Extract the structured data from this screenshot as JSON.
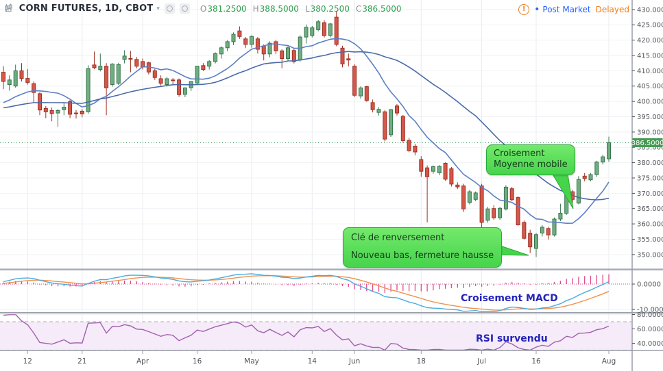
{
  "header": {
    "symbol_title": "CORN FUTURES, 1D, CBOT",
    "ohlc": {
      "o_label": "O",
      "o_value": "381.2500",
      "h_label": "H",
      "h_value": "388.5000",
      "l_label": "L",
      "l_value": "380.2500",
      "c_label": "C",
      "c_value": "386.5000"
    },
    "post_market_label": "Post Market",
    "delayed_label": "Delayed"
  },
  "icons": {
    "add_glyph": "⊞",
    "caret_glyph": "▾",
    "warning_glyph": "!",
    "post_market_dot": "•"
  },
  "annotations": {
    "ma_cross": {
      "line1": "Croisement",
      "line2": "Moyenne mobile"
    },
    "key_reversal": {
      "line1": "Clé de renversement",
      "line2": "Nouveau bas, fermeture hausse"
    },
    "macd_label": "Croisement MACD",
    "rsi_label": "RSI survendu"
  },
  "colors": {
    "up_text": "#2e9d4e",
    "orange": "#ef7f1a",
    "blue": "#2962ff",
    "navy": "#2424b8",
    "bub1": "#74e96c",
    "bub2": "#46d44b",
    "bub_border": "#2da83a",
    "up_fill": "#6fae80",
    "up_stroke": "#38754d",
    "down_fill": "#d4584a",
    "down_stroke": "#9f2f23",
    "ma_fast": "#5d7fc4",
    "ma_slow": "#4a6aa8",
    "macd_line": "#4aabe0",
    "signal_line": "#f19149",
    "histogram": "#e0498a",
    "rsi_line": "#a160ae",
    "rsi_band": "#f6ebf9",
    "rsi_band_border": "#adadad",
    "last_price_line": "#3f9e68",
    "badge_bg": "#459a52",
    "badge_text": "#ffffff",
    "grid_h": "#f0f2f5",
    "grid_v": "#e9ebee",
    "separator": "#9a9ea8",
    "axis_text": "#4f5258"
  },
  "chart_data": {
    "type": "candlestick",
    "title": "CORN FUTURES, 1D, CBOT",
    "interval": "1D",
    "exchange": "CBOT",
    "last_bar": {
      "open": 381.25,
      "high": 388.5,
      "low": 380.25,
      "close": 386.5
    },
    "price_axis": {
      "ticks": [
        430,
        425,
        420,
        415,
        410,
        405,
        400,
        395,
        390,
        385,
        380,
        375,
        370,
        365,
        360,
        355,
        350
      ],
      "decimals": 4,
      "range": [
        345.2,
        433.1
      ],
      "last_price": 386.5,
      "last_price_label": "386.5000"
    },
    "time_axis": {
      "ticks": [
        {
          "label": "12",
          "bar": 4
        },
        {
          "label": "21",
          "bar": 13
        },
        {
          "label": "Apr",
          "bar": 23
        },
        {
          "label": "16",
          "bar": 32
        },
        {
          "label": "May",
          "bar": 41
        },
        {
          "label": "14",
          "bar": 51
        },
        {
          "label": "Jun",
          "bar": 58
        },
        {
          "label": "18",
          "bar": 69
        },
        {
          "label": "Jul",
          "bar": 79
        },
        {
          "label": "16",
          "bar": 88
        },
        {
          "label": "Aug",
          "bar": 100
        }
      ]
    },
    "series": {
      "warmup_closes": [
        399,
        398,
        397.5,
        396.5,
        396,
        395.5,
        396,
        396.5,
        397,
        397.5,
        398,
        398.5,
        398,
        397.5,
        397,
        396.5,
        396,
        396.5,
        397,
        397.5,
        398,
        398.5,
        399,
        399.5,
        399,
        398.5,
        398,
        398.5,
        399,
        399.5
      ],
      "candles": [
        [
          409.5,
          411.5,
          404,
          406.5
        ],
        [
          405.5,
          408.5,
          403.5,
          407
        ],
        [
          405,
          412,
          404.5,
          410
        ],
        [
          410,
          412.5,
          406.5,
          407.5
        ],
        [
          407.5,
          410.5,
          405.5,
          406.2
        ],
        [
          405.8,
          406.5,
          399.5,
          402.9
        ],
        [
          402.5,
          403,
          395.5,
          397.2
        ],
        [
          397.7,
          398.5,
          394.5,
          396.6
        ],
        [
          397,
          398,
          393.5,
          396
        ],
        [
          396.2,
          397.5,
          391.7,
          397
        ],
        [
          397.3,
          399.5,
          395.5,
          398.1
        ],
        [
          399.9,
          400.5,
          394.5,
          395.8
        ],
        [
          396.2,
          397.2,
          394.4,
          396
        ],
        [
          396.8,
          397.5,
          394.8,
          395.9
        ],
        [
          396.6,
          411.8,
          396,
          410.7
        ],
        [
          411.9,
          416.3,
          410.5,
          411
        ],
        [
          410.4,
          415.6,
          409.8,
          411.5
        ],
        [
          411.5,
          412.5,
          395.5,
          404.4
        ],
        [
          405.5,
          412.5,
          404.8,
          412.2
        ],
        [
          405.9,
          412.6,
          405.4,
          412
        ],
        [
          413.7,
          416.7,
          412.4,
          414.8
        ],
        [
          414,
          416.5,
          409.5,
          413.9
        ],
        [
          413.7,
          414.5,
          410.8,
          411.5
        ],
        [
          413,
          414,
          410.4,
          411.2
        ],
        [
          412.6,
          413,
          408.8,
          409.6
        ],
        [
          410,
          410.6,
          407,
          407.8
        ],
        [
          407.4,
          408.5,
          405.2,
          405.9
        ],
        [
          405.5,
          408,
          404.8,
          407.4
        ],
        [
          407,
          407.6,
          405.4,
          406.8
        ],
        [
          407,
          407.5,
          401.5,
          402.2
        ],
        [
          402.3,
          404.6,
          401.4,
          404.4
        ],
        [
          404.4,
          406.6,
          403.4,
          406.5
        ],
        [
          406,
          411.6,
          405.5,
          411.5
        ],
        [
          411.7,
          412.5,
          409.9,
          410.4
        ],
        [
          411.5,
          413.5,
          410.4,
          413
        ],
        [
          413,
          416,
          412.4,
          415.6
        ],
        [
          415.5,
          418,
          414,
          417.5
        ],
        [
          417.5,
          420,
          416.4,
          419.5
        ],
        [
          419.5,
          422.5,
          418.4,
          421.9
        ],
        [
          423,
          424.5,
          420.4,
          421.2
        ],
        [
          420.4,
          421,
          417.4,
          418.6
        ],
        [
          418.6,
          421.6,
          417.5,
          421.2
        ],
        [
          420.4,
          421,
          415.6,
          417
        ],
        [
          418.1,
          418.6,
          413.4,
          415.5
        ],
        [
          415.5,
          419.6,
          414.4,
          419
        ],
        [
          419.5,
          420.1,
          415.4,
          416.5
        ],
        [
          416.5,
          417,
          410.8,
          414
        ],
        [
          414,
          418.1,
          413.4,
          417.5
        ],
        [
          416.6,
          417.5,
          412.4,
          413
        ],
        [
          413.5,
          421.6,
          412.9,
          421
        ],
        [
          421,
          425.1,
          418.9,
          424.2
        ],
        [
          421.5,
          424.6,
          420.9,
          424
        ],
        [
          423.4,
          426.6,
          422.9,
          426
        ],
        [
          425.7,
          426.5,
          420.9,
          421.5
        ],
        [
          421.5,
          425.6,
          420.9,
          425.3
        ],
        [
          427.5,
          429.5,
          418,
          418.6
        ],
        [
          417.4,
          418.2,
          411.1,
          412.2
        ],
        [
          413.9,
          415.6,
          411.4,
          413.5
        ],
        [
          411.5,
          412.1,
          401.4,
          402
        ],
        [
          401.8,
          404.9,
          400.9,
          404.4
        ],
        [
          404.8,
          405.1,
          399.9,
          400.3
        ],
        [
          399.6,
          400.6,
          396.4,
          397.3
        ],
        [
          396.4,
          398.1,
          395.4,
          397.4
        ],
        [
          396.6,
          397.1,
          386.9,
          387.7
        ],
        [
          389.1,
          397.6,
          388.4,
          397.3
        ],
        [
          398.5,
          399.1,
          395.4,
          396.2
        ],
        [
          395.1,
          395.6,
          386.5,
          387.2
        ],
        [
          387.3,
          388.1,
          383.4,
          383.9
        ],
        [
          385.4,
          386.1,
          382.4,
          383.5
        ],
        [
          381,
          382.1,
          375.4,
          377.2
        ],
        [
          378.3,
          379.1,
          360.5,
          375.4
        ],
        [
          377.2,
          379.1,
          376.4,
          378.7
        ],
        [
          376.7,
          379.2,
          375.9,
          378.8
        ],
        [
          379.8,
          380.1,
          374.1,
          374.6
        ],
        [
          378,
          378.6,
          372.2,
          373
        ],
        [
          372.7,
          373.6,
          371.4,
          372.1
        ],
        [
          372.4,
          373.1,
          363.9,
          364.9
        ],
        [
          367,
          371.1,
          366.4,
          370.5
        ],
        [
          368,
          370.6,
          367.4,
          370.1
        ],
        [
          372.4,
          373.1,
          357.5,
          360.5
        ],
        [
          361.2,
          365.6,
          360.4,
          364.9
        ],
        [
          365,
          366.1,
          361.4,
          362
        ],
        [
          362,
          365.6,
          361.4,
          365.1
        ],
        [
          364.9,
          372.6,
          364.4,
          372
        ],
        [
          371.5,
          372.1,
          367.4,
          367.9
        ],
        [
          368.6,
          369.1,
          359.4,
          359.7
        ],
        [
          360.5,
          361.1,
          354.9,
          355.3
        ],
        [
          357,
          358.1,
          350.5,
          352.5
        ],
        [
          352,
          357.1,
          349.25,
          356.5
        ],
        [
          357,
          359.6,
          355.9,
          358.9
        ],
        [
          358.5,
          359.1,
          354.9,
          356.4
        ],
        [
          356.4,
          362.1,
          355.9,
          361.6
        ],
        [
          361.6,
          366.6,
          360.9,
          363.5
        ],
        [
          363.5,
          370.1,
          362.9,
          369.8
        ],
        [
          370.5,
          371.1,
          366.9,
          368
        ],
        [
          366.8,
          375.6,
          366.4,
          374.5
        ],
        [
          375.6,
          376.6,
          373.9,
          374.8
        ],
        [
          374.4,
          376.6,
          373.9,
          376.1
        ],
        [
          376.1,
          380.6,
          375.4,
          380.2
        ],
        [
          380.2,
          382.6,
          379.4,
          381.9
        ],
        [
          381.25,
          388.5,
          380.25,
          386.5
        ]
      ]
    },
    "indicators": {
      "sma_fast": {
        "type": "sma",
        "period": 10
      },
      "sma_slow": {
        "type": "sma",
        "period": 30
      },
      "macd": {
        "fast": 12,
        "slow": 26,
        "signal_period": 9,
        "ticks": [
          0,
          -10
        ],
        "decimals": 4
      },
      "rsi": {
        "period": 14,
        "ticks": [
          80,
          60,
          40
        ],
        "overbought": 70,
        "oversold": 30,
        "decimals": 4
      }
    }
  }
}
